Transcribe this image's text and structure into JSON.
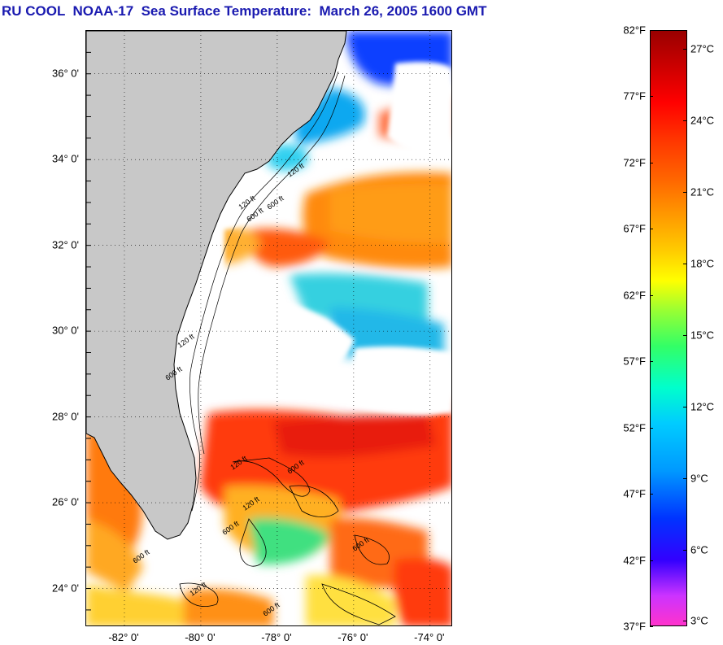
{
  "title": "RU COOL  NOAA-17  Sea Surface Temperature:  March 26, 2005 1600 GMT",
  "map": {
    "lat_range": [
      23.1,
      37.0
    ],
    "lon_range": [
      -83.0,
      -73.4
    ],
    "lat_labels": [
      {
        "value": 36,
        "text": "36° 0'"
      },
      {
        "value": 34,
        "text": "34° 0'"
      },
      {
        "value": 32,
        "text": "32° 0'"
      },
      {
        "value": 30,
        "text": "30° 0'"
      },
      {
        "value": 28,
        "text": "28° 0'"
      },
      {
        "value": 26,
        "text": "26° 0'"
      },
      {
        "value": 24,
        "text": "24° 0'"
      }
    ],
    "lon_labels": [
      {
        "value": -82,
        "text": "-82° 0'"
      },
      {
        "value": -80,
        "text": "-80° 0'"
      },
      {
        "value": -78,
        "text": "-78° 0'"
      },
      {
        "value": -76,
        "text": "-76° 0'"
      },
      {
        "value": -74,
        "text": "-74° 0'"
      }
    ],
    "contour_labels": [
      "120 ft",
      "600 ft",
      "120 ft",
      "600 ft",
      "120 ft",
      "600 ft",
      "120 ft",
      "600 ft",
      "120 ft",
      "600 ft",
      "600 ft",
      "120 ft",
      "600 ft",
      "600 ft"
    ],
    "colors": {
      "land": "#c8c8c8",
      "cloud": "#ffffff",
      "coastline": "#000000"
    }
  },
  "colorbar": {
    "fahrenheit_ticks": [
      "82°F",
      "77°F",
      "72°F",
      "67°F",
      "62°F",
      "57°F",
      "52°F",
      "47°F",
      "42°F",
      "37°F"
    ],
    "celsius_ticks": [
      "27°C",
      "24°C",
      "21°C",
      "18°C",
      "15°C",
      "12°C",
      "9°C",
      "6°C",
      "3°C"
    ],
    "fahrenheit_range": [
      37,
      82
    ],
    "celsius_values": [
      27,
      24,
      21,
      18,
      15,
      12,
      9,
      6,
      3
    ]
  }
}
